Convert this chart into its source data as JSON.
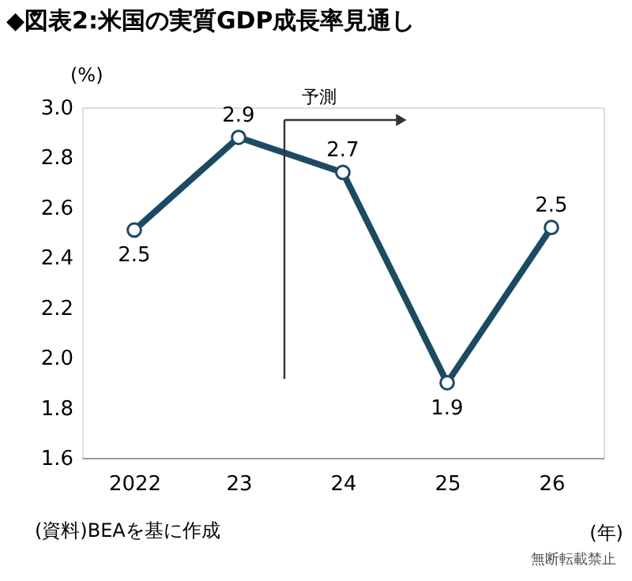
{
  "chart_data": {
    "type": "line",
    "title": "◆図表2:米国の実質GDP成長率見通し",
    "ylabel": "(%)",
    "xlabel": "(年)",
    "categories": [
      "2022",
      "23",
      "24",
      "25",
      "26"
    ],
    "series": [
      {
        "color": "#1d4a63",
        "values": [
          2.51,
          2.88,
          2.74,
          1.9,
          2.52
        ],
        "value_labels": [
          "2.5",
          "2.9",
          "2.7",
          "1.9",
          "2.5"
        ]
      }
    ],
    "ylim": [
      1.6,
      3.0
    ],
    "yticks": [
      1.6,
      1.8,
      {
        "value": 2,
        "label": "2.0"
      },
      2.2,
      2.4,
      2.6,
      2.8,
      {
        "value": 3,
        "label": "3.0"
      }
    ],
    "marker": "circle",
    "line_style": "solid",
    "grid": false,
    "legend": false,
    "annotations": [
      "予測",
      "(資料)BEAを基に作成",
      "無断転載禁止"
    ]
  }
}
